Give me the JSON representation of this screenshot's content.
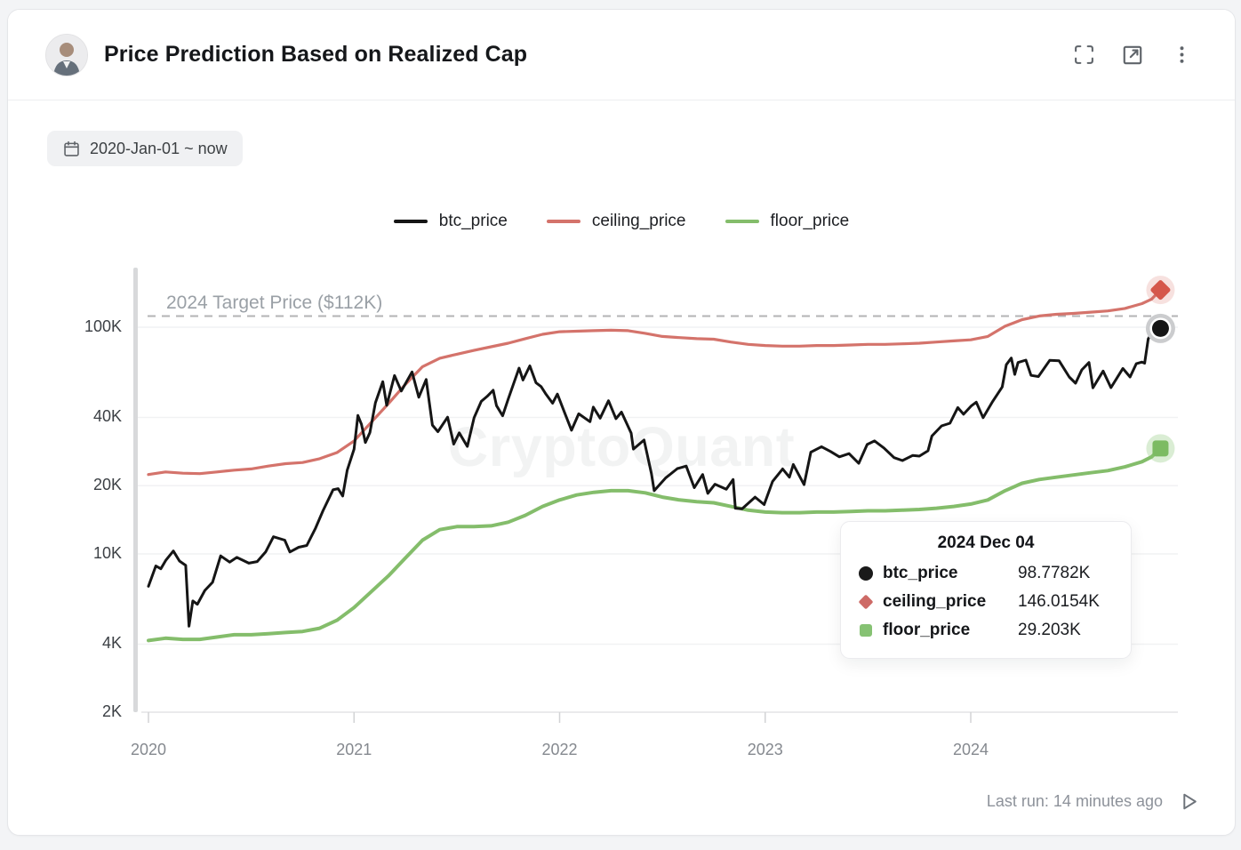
{
  "header": {
    "title": "Price Prediction Based on Realized Cap",
    "actions": {
      "fullscreen": "fullscreen",
      "open_external": "open in new window",
      "more": "more options"
    }
  },
  "toolbar": {
    "date_range": "2020-Jan-01 ~ now"
  },
  "watermark": "CryptoQuant",
  "footer": {
    "last_run": "Last run: 14 minutes ago"
  },
  "chart_data": {
    "type": "line",
    "y_scale": "log",
    "ylabel": "",
    "xlabel": "",
    "ylim_k": [
      2,
      183
    ],
    "x_range": [
      2020,
      2025
    ],
    "y_ticks": [
      {
        "label": "100K",
        "value_k": 100
      },
      {
        "label": "40K",
        "value_k": 40
      },
      {
        "label": "20K",
        "value_k": 20
      },
      {
        "label": "10K",
        "value_k": 10
      },
      {
        "label": "4K",
        "value_k": 4
      },
      {
        "label": "2K",
        "value_k": 2
      }
    ],
    "x_ticks": [
      {
        "label": "2020",
        "value": 2020
      },
      {
        "label": "2021",
        "value": 2021
      },
      {
        "label": "2022",
        "value": 2022
      },
      {
        "label": "2023",
        "value": 2023
      },
      {
        "label": "2024",
        "value": 2024
      }
    ],
    "annotation": {
      "label": "2024 Target Price ($112K)",
      "value_k": 112
    },
    "legend_position": "top-center",
    "grid": true,
    "series": [
      {
        "name": "floor_price",
        "color": "#84bd6b",
        "marker": "square",
        "marker_color": "#7cbb63",
        "halo_color": "rgba(133,195,112,0.30)",
        "line_width": 4,
        "points": [
          [
            2020.0,
            4.15
          ],
          [
            2020.083,
            4.25
          ],
          [
            2020.167,
            4.2
          ],
          [
            2020.25,
            4.2
          ],
          [
            2020.333,
            4.3
          ],
          [
            2020.417,
            4.4
          ],
          [
            2020.5,
            4.4
          ],
          [
            2020.583,
            4.45
          ],
          [
            2020.667,
            4.5
          ],
          [
            2020.75,
            4.55
          ],
          [
            2020.833,
            4.7
          ],
          [
            2020.917,
            5.1
          ],
          [
            2021.0,
            5.8
          ],
          [
            2021.083,
            6.8
          ],
          [
            2021.167,
            8.0
          ],
          [
            2021.25,
            9.6
          ],
          [
            2021.333,
            11.5
          ],
          [
            2021.417,
            12.8
          ],
          [
            2021.5,
            13.2
          ],
          [
            2021.583,
            13.2
          ],
          [
            2021.667,
            13.3
          ],
          [
            2021.75,
            13.8
          ],
          [
            2021.833,
            14.8
          ],
          [
            2021.917,
            16.2
          ],
          [
            2022.0,
            17.3
          ],
          [
            2022.083,
            18.2
          ],
          [
            2022.167,
            18.7
          ],
          [
            2022.25,
            19.0
          ],
          [
            2022.333,
            19.0
          ],
          [
            2022.417,
            18.6
          ],
          [
            2022.5,
            17.8
          ],
          [
            2022.583,
            17.3
          ],
          [
            2022.667,
            17.0
          ],
          [
            2022.75,
            16.8
          ],
          [
            2022.833,
            16.2
          ],
          [
            2022.917,
            15.6
          ],
          [
            2023.0,
            15.3
          ],
          [
            2023.083,
            15.2
          ],
          [
            2023.167,
            15.2
          ],
          [
            2023.25,
            15.3
          ],
          [
            2023.333,
            15.3
          ],
          [
            2023.417,
            15.4
          ],
          [
            2023.5,
            15.5
          ],
          [
            2023.583,
            15.5
          ],
          [
            2023.667,
            15.6
          ],
          [
            2023.75,
            15.7
          ],
          [
            2023.833,
            15.9
          ],
          [
            2023.917,
            16.2
          ],
          [
            2024.0,
            16.6
          ],
          [
            2024.083,
            17.3
          ],
          [
            2024.167,
            19.0
          ],
          [
            2024.25,
            20.5
          ],
          [
            2024.333,
            21.3
          ],
          [
            2024.417,
            21.8
          ],
          [
            2024.5,
            22.3
          ],
          [
            2024.583,
            22.8
          ],
          [
            2024.667,
            23.3
          ],
          [
            2024.75,
            24.2
          ],
          [
            2024.833,
            25.5
          ],
          [
            2024.88,
            26.8
          ],
          [
            2024.923,
            29.203
          ]
        ]
      },
      {
        "name": "ceiling_price",
        "color": "#d4736b",
        "marker": "diamond",
        "marker_color": "#d5574b",
        "halo_color": "rgba(213,91,79,0.18)",
        "line_width": 3.2,
        "points": [
          [
            2020.0,
            22.4
          ],
          [
            2020.083,
            23.0
          ],
          [
            2020.167,
            22.7
          ],
          [
            2020.25,
            22.6
          ],
          [
            2020.333,
            23.0
          ],
          [
            2020.417,
            23.4
          ],
          [
            2020.5,
            23.7
          ],
          [
            2020.583,
            24.4
          ],
          [
            2020.667,
            25.0
          ],
          [
            2020.75,
            25.3
          ],
          [
            2020.833,
            26.3
          ],
          [
            2020.917,
            28.0
          ],
          [
            2021.0,
            31.5
          ],
          [
            2021.083,
            38
          ],
          [
            2021.167,
            46
          ],
          [
            2021.25,
            56
          ],
          [
            2021.333,
            67
          ],
          [
            2021.417,
            73
          ],
          [
            2021.5,
            76
          ],
          [
            2021.583,
            79
          ],
          [
            2021.667,
            82
          ],
          [
            2021.75,
            85
          ],
          [
            2021.833,
            89
          ],
          [
            2021.917,
            93
          ],
          [
            2022.0,
            95.5
          ],
          [
            2022.083,
            96
          ],
          [
            2022.167,
            96.5
          ],
          [
            2022.25,
            97
          ],
          [
            2022.333,
            96.5
          ],
          [
            2022.417,
            94
          ],
          [
            2022.5,
            91
          ],
          [
            2022.583,
            90
          ],
          [
            2022.667,
            89
          ],
          [
            2022.75,
            88.5
          ],
          [
            2022.833,
            86
          ],
          [
            2022.917,
            84
          ],
          [
            2023.0,
            83
          ],
          [
            2023.083,
            82.5
          ],
          [
            2023.167,
            82.5
          ],
          [
            2023.25,
            83
          ],
          [
            2023.333,
            83
          ],
          [
            2023.417,
            83.5
          ],
          [
            2023.5,
            84
          ],
          [
            2023.583,
            84
          ],
          [
            2023.667,
            84.5
          ],
          [
            2023.75,
            85
          ],
          [
            2023.833,
            86
          ],
          [
            2023.917,
            87
          ],
          [
            2024.0,
            88
          ],
          [
            2024.083,
            91
          ],
          [
            2024.167,
            101
          ],
          [
            2024.25,
            108
          ],
          [
            2024.333,
            112
          ],
          [
            2024.417,
            114
          ],
          [
            2024.5,
            115
          ],
          [
            2024.583,
            116.5
          ],
          [
            2024.667,
            118
          ],
          [
            2024.75,
            121
          ],
          [
            2024.833,
            127
          ],
          [
            2024.88,
            133
          ],
          [
            2024.923,
            146.0154
          ]
        ]
      },
      {
        "name": "btc_price",
        "color": "#151515",
        "marker": "circle",
        "marker_color": "#151515",
        "halo_color": "#cbccce",
        "line_width": 3,
        "points": [
          [
            2020.0,
            7.2
          ],
          [
            2020.036,
            8.85
          ],
          [
            2020.06,
            8.6
          ],
          [
            2020.085,
            9.4
          ],
          [
            2020.121,
            10.3
          ],
          [
            2020.151,
            9.3
          ],
          [
            2020.181,
            8.9
          ],
          [
            2020.197,
            4.8
          ],
          [
            2020.216,
            6.2
          ],
          [
            2020.238,
            6.0
          ],
          [
            2020.274,
            6.9
          ],
          [
            2020.312,
            7.5
          ],
          [
            2020.351,
            9.8
          ],
          [
            2020.395,
            9.2
          ],
          [
            2020.43,
            9.65
          ],
          [
            2020.488,
            9.1
          ],
          [
            2020.529,
            9.25
          ],
          [
            2020.57,
            10.2
          ],
          [
            2020.608,
            11.9
          ],
          [
            2020.663,
            11.5
          ],
          [
            2020.688,
            10.2
          ],
          [
            2020.731,
            10.7
          ],
          [
            2020.77,
            10.9
          ],
          [
            2020.813,
            13.0
          ],
          [
            2020.849,
            15.5
          ],
          [
            2020.898,
            19.2
          ],
          [
            2020.923,
            19.4
          ],
          [
            2020.945,
            18.0
          ],
          [
            2020.967,
            23.4
          ],
          [
            2021.0,
            29.0
          ],
          [
            2021.019,
            40.8
          ],
          [
            2021.036,
            37.3
          ],
          [
            2021.055,
            31.0
          ],
          [
            2021.077,
            34.3
          ],
          [
            2021.104,
            46.4
          ],
          [
            2021.14,
            57.5
          ],
          [
            2021.159,
            45.2
          ],
          [
            2021.197,
            61.2
          ],
          [
            2021.23,
            52.3
          ],
          [
            2021.282,
            63.5
          ],
          [
            2021.315,
            49.1
          ],
          [
            2021.351,
            58.8
          ],
          [
            2021.381,
            37.0
          ],
          [
            2021.408,
            34.6
          ],
          [
            2021.455,
            40.1
          ],
          [
            2021.485,
            30.5
          ],
          [
            2021.512,
            34.2
          ],
          [
            2021.551,
            29.8
          ],
          [
            2021.584,
            39.9
          ],
          [
            2021.619,
            47.1
          ],
          [
            2021.647,
            49.5
          ],
          [
            2021.677,
            52.7
          ],
          [
            2021.693,
            45.1
          ],
          [
            2021.723,
            40.7
          ],
          [
            2021.75,
            48.2
          ],
          [
            2021.803,
            66.0
          ],
          [
            2021.822,
            58.5
          ],
          [
            2021.855,
            67.5
          ],
          [
            2021.885,
            56.9
          ],
          [
            2021.91,
            54.7
          ],
          [
            2021.934,
            50.6
          ],
          [
            2021.966,
            46.2
          ],
          [
            2021.989,
            50.7
          ],
          [
            2022.025,
            41.8
          ],
          [
            2022.058,
            35.1
          ],
          [
            2022.093,
            41.5
          ],
          [
            2022.148,
            38.3
          ],
          [
            2022.164,
            44.4
          ],
          [
            2022.197,
            39.7
          ],
          [
            2022.238,
            47.4
          ],
          [
            2022.274,
            39.5
          ],
          [
            2022.301,
            42.2
          ],
          [
            2022.348,
            34.1
          ],
          [
            2022.359,
            29.0
          ],
          [
            2022.411,
            31.8
          ],
          [
            2022.447,
            22.5
          ],
          [
            2022.46,
            19.0
          ],
          [
            2022.515,
            21.6
          ],
          [
            2022.573,
            23.8
          ],
          [
            2022.616,
            24.4
          ],
          [
            2022.655,
            19.6
          ],
          [
            2022.696,
            22.4
          ],
          [
            2022.721,
            18.5
          ],
          [
            2022.756,
            20.3
          ],
          [
            2022.811,
            19.3
          ],
          [
            2022.844,
            21.3
          ],
          [
            2022.855,
            15.9
          ],
          [
            2022.888,
            15.8
          ],
          [
            2022.951,
            17.8
          ],
          [
            2022.995,
            16.5
          ],
          [
            2023.036,
            20.9
          ],
          [
            2023.085,
            23.7
          ],
          [
            2023.118,
            21.8
          ],
          [
            2023.137,
            24.8
          ],
          [
            2023.189,
            20.2
          ],
          [
            2023.222,
            28.1
          ],
          [
            2023.274,
            29.7
          ],
          [
            2023.318,
            28.3
          ],
          [
            2023.361,
            26.8
          ],
          [
            2023.408,
            27.7
          ],
          [
            2023.455,
            25.1
          ],
          [
            2023.496,
            30.4
          ],
          [
            2023.532,
            31.5
          ],
          [
            2023.578,
            29.3
          ],
          [
            2023.627,
            26.6
          ],
          [
            2023.668,
            25.8
          ],
          [
            2023.718,
            27.2
          ],
          [
            2023.75,
            27.0
          ],
          [
            2023.792,
            28.5
          ],
          [
            2023.811,
            33.1
          ],
          [
            2023.858,
            36.7
          ],
          [
            2023.899,
            37.7
          ],
          [
            2023.937,
            44.2
          ],
          [
            2023.965,
            41.3
          ],
          [
            2024.003,
            45.0
          ],
          [
            2024.027,
            46.7
          ],
          [
            2024.06,
            39.9
          ],
          [
            2024.107,
            47.1
          ],
          [
            2024.153,
            54.5
          ],
          [
            2024.173,
            68.3
          ],
          [
            2024.197,
            73.1
          ],
          [
            2024.214,
            61.9
          ],
          [
            2024.23,
            69.9
          ],
          [
            2024.268,
            71.6
          ],
          [
            2024.293,
            61.3
          ],
          [
            2024.329,
            60.6
          ],
          [
            2024.384,
            71.4
          ],
          [
            2024.43,
            71.1
          ],
          [
            2024.479,
            60.3
          ],
          [
            2024.51,
            56.6
          ],
          [
            2024.54,
            64.8
          ],
          [
            2024.575,
            69.9
          ],
          [
            2024.594,
            54.0
          ],
          [
            2024.644,
            64.1
          ],
          [
            2024.682,
            54.1
          ],
          [
            2024.74,
            65.8
          ],
          [
            2024.775,
            60.3
          ],
          [
            2024.805,
            69.0
          ],
          [
            2024.833,
            70.2
          ],
          [
            2024.846,
            69.4
          ],
          [
            2024.863,
            88.7
          ],
          [
            2024.893,
            99.0
          ],
          [
            2024.904,
            91.9
          ],
          [
            2024.923,
            98.7782
          ]
        ]
      }
    ],
    "legend": [
      {
        "name": "btc_price",
        "color": "#151515"
      },
      {
        "name": "ceiling_price",
        "color": "#d4736b"
      },
      {
        "name": "floor_price",
        "color": "#84bd6b"
      }
    ],
    "tooltip": {
      "date": "2024 Dec 04",
      "rows": [
        {
          "name": "btc_price",
          "value": "98.7782K",
          "color": "#1a1a1a",
          "marker": "circle"
        },
        {
          "name": "ceiling_price",
          "value": "146.0154K",
          "color": "#cd6a66",
          "marker": "diamond"
        },
        {
          "name": "floor_price",
          "value": "29.203K",
          "color": "#86c273",
          "marker": "square"
        }
      ]
    }
  }
}
